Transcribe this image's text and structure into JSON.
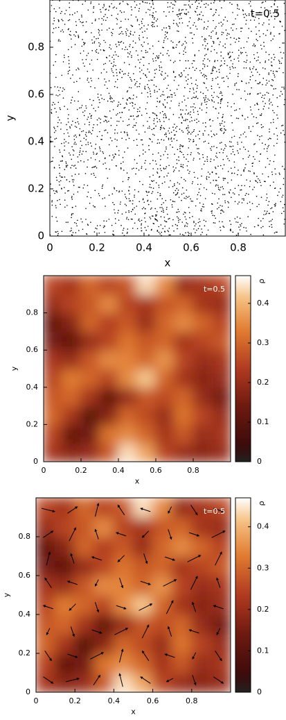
{
  "chart_data": [
    {
      "type": "scatter",
      "annotation": "t=0.5",
      "annotation_color": "#000000",
      "xlabel": "x",
      "ylabel": "y",
      "color": "#000000",
      "xlim": [
        0,
        1
      ],
      "ylim": [
        0,
        1
      ],
      "xticks": [
        0,
        0.2,
        0.4,
        0.6,
        0.8
      ],
      "yticks": [
        0,
        0.2,
        0.4,
        0.6,
        0.8
      ],
      "counts": [
        [
          22,
          18,
          20,
          28,
          44,
          38,
          25,
          20,
          18,
          20
        ],
        [
          25,
          12,
          15,
          32,
          35,
          30,
          22,
          28,
          20,
          22
        ],
        [
          30,
          22,
          10,
          18,
          30,
          26,
          20,
          32,
          25,
          20
        ],
        [
          28,
          30,
          22,
          12,
          20,
          28,
          26,
          30,
          20,
          15
        ],
        [
          25,
          33,
          30,
          25,
          35,
          42,
          30,
          22,
          18,
          20
        ],
        [
          22,
          20,
          28,
          35,
          34,
          30,
          36,
          25,
          20,
          22
        ],
        [
          15,
          12,
          20,
          25,
          32,
          28,
          30,
          22,
          25,
          28
        ],
        [
          12,
          18,
          30,
          24,
          28,
          20,
          30,
          35,
          30,
          25
        ],
        [
          20,
          25,
          28,
          35,
          25,
          22,
          28,
          30,
          22,
          20
        ],
        [
          25,
          22,
          30,
          25,
          28,
          44,
          35,
          20,
          22,
          25
        ]
      ]
    },
    {
      "type": "heatmap",
      "annotation": "t=0.5",
      "annotation_color": "#ffffff",
      "xlabel": "x",
      "ylabel": "y",
      "xlim": [
        0,
        1
      ],
      "ylim": [
        0,
        1
      ],
      "xticks": [
        0,
        0.2,
        0.4,
        0.6,
        0.8
      ],
      "yticks": [
        0,
        0.2,
        0.4,
        0.6,
        0.8
      ],
      "z": [
        [
          0.22,
          0.18,
          0.2,
          0.28,
          0.44,
          0.38,
          0.25,
          0.2,
          0.18,
          0.2
        ],
        [
          0.25,
          0.12,
          0.15,
          0.32,
          0.35,
          0.3,
          0.22,
          0.28,
          0.2,
          0.22
        ],
        [
          0.3,
          0.22,
          0.1,
          0.18,
          0.3,
          0.26,
          0.2,
          0.32,
          0.25,
          0.2
        ],
        [
          0.28,
          0.3,
          0.22,
          0.12,
          0.2,
          0.28,
          0.26,
          0.3,
          0.2,
          0.15
        ],
        [
          0.25,
          0.33,
          0.3,
          0.25,
          0.35,
          0.42,
          0.3,
          0.22,
          0.18,
          0.2
        ],
        [
          0.22,
          0.2,
          0.28,
          0.35,
          0.34,
          0.3,
          0.36,
          0.25,
          0.2,
          0.22
        ],
        [
          0.15,
          0.12,
          0.2,
          0.25,
          0.32,
          0.28,
          0.3,
          0.22,
          0.25,
          0.28
        ],
        [
          0.12,
          0.18,
          0.3,
          0.24,
          0.28,
          0.2,
          0.3,
          0.35,
          0.3,
          0.25
        ],
        [
          0.2,
          0.25,
          0.28,
          0.35,
          0.25,
          0.22,
          0.28,
          0.3,
          0.22,
          0.2
        ],
        [
          0.25,
          0.22,
          0.3,
          0.25,
          0.28,
          0.44,
          0.35,
          0.2,
          0.22,
          0.25
        ]
      ],
      "colorbar": {
        "label": "ρ",
        "lim": [
          0,
          0.47
        ],
        "ticks": [
          0,
          0.1,
          0.2,
          0.3,
          0.4
        ]
      }
    },
    {
      "type": "heatmap",
      "annotation": "t=0.5",
      "annotation_color": "#ffffff",
      "xlabel": "x",
      "ylabel": "y",
      "xlim": [
        0,
        1
      ],
      "ylim": [
        0,
        1
      ],
      "xticks": [
        0,
        0.2,
        0.4,
        0.6,
        0.8
      ],
      "yticks": [
        0,
        0.2,
        0.4,
        0.6,
        0.8
      ],
      "z": [
        [
          0.22,
          0.18,
          0.2,
          0.28,
          0.44,
          0.38,
          0.25,
          0.2,
          0.18,
          0.2
        ],
        [
          0.25,
          0.12,
          0.15,
          0.32,
          0.35,
          0.3,
          0.22,
          0.28,
          0.2,
          0.22
        ],
        [
          0.3,
          0.22,
          0.1,
          0.18,
          0.3,
          0.26,
          0.2,
          0.32,
          0.25,
          0.2
        ],
        [
          0.28,
          0.3,
          0.22,
          0.12,
          0.2,
          0.28,
          0.26,
          0.3,
          0.2,
          0.15
        ],
        [
          0.25,
          0.33,
          0.3,
          0.25,
          0.35,
          0.42,
          0.3,
          0.22,
          0.18,
          0.2
        ],
        [
          0.22,
          0.2,
          0.28,
          0.35,
          0.34,
          0.3,
          0.36,
          0.25,
          0.2,
          0.22
        ],
        [
          0.15,
          0.12,
          0.2,
          0.25,
          0.32,
          0.28,
          0.3,
          0.22,
          0.25,
          0.28
        ],
        [
          0.12,
          0.18,
          0.3,
          0.24,
          0.28,
          0.2,
          0.3,
          0.35,
          0.3,
          0.25
        ],
        [
          0.2,
          0.25,
          0.28,
          0.35,
          0.25,
          0.22,
          0.28,
          0.3,
          0.22,
          0.2
        ],
        [
          0.25,
          0.22,
          0.3,
          0.25,
          0.28,
          0.44,
          0.35,
          0.2,
          0.22,
          0.25
        ]
      ],
      "colorbar": {
        "label": "ρ",
        "lim": [
          0,
          0.47
        ],
        "ticks": [
          0,
          0.1,
          0.2,
          0.3,
          0.4
        ]
      },
      "vectors": {
        "color": "#000000",
        "u": [
          [
            0.6,
            0.8,
            0.4,
            -0.2,
            -0.6,
            -0.4,
            0.2,
            0.6
          ],
          [
            0.4,
            0.6,
            0.8,
            0.2,
            -0.4,
            -0.6,
            -0.2,
            0.4
          ],
          [
            -0.2,
            0.2,
            0.6,
            0.8,
            0.4,
            -0.2,
            -0.6,
            -0.2
          ],
          [
            -0.6,
            -0.4,
            0.2,
            0.6,
            0.8,
            0.4,
            -0.2,
            -0.6
          ],
          [
            -0.4,
            -0.6,
            -0.2,
            0.2,
            0.6,
            0.8,
            0.4,
            -0.2
          ],
          [
            0.2,
            -0.2,
            -0.6,
            -0.4,
            0.2,
            0.6,
            0.8,
            0.4
          ],
          [
            0.6,
            0.4,
            -0.2,
            -0.6,
            -0.4,
            0.2,
            0.6,
            0.8
          ],
          [
            0.8,
            0.6,
            0.2,
            -0.4,
            -0.6,
            -0.2,
            0.4,
            0.6
          ]
        ],
        "v": [
          [
            -0.4,
            0.2,
            0.6,
            0.8,
            0.4,
            -0.2,
            -0.6,
            -0.4
          ],
          [
            -0.6,
            -0.2,
            0.4,
            0.8,
            0.6,
            0.2,
            -0.4,
            -0.6
          ],
          [
            -0.4,
            -0.6,
            -0.2,
            0.4,
            0.8,
            0.6,
            0.2,
            -0.4
          ],
          [
            0.2,
            -0.4,
            -0.6,
            -0.2,
            0.4,
            0.8,
            0.6,
            0.2
          ],
          [
            0.6,
            0.2,
            -0.4,
            -0.6,
            -0.2,
            0.4,
            0.8,
            0.6
          ],
          [
            0.8,
            0.6,
            0.2,
            -0.4,
            -0.6,
            -0.2,
            0.4,
            0.8
          ],
          [
            0.4,
            0.8,
            0.6,
            0.2,
            -0.4,
            -0.6,
            -0.2,
            0.4
          ],
          [
            -0.2,
            0.4,
            0.8,
            0.6,
            0.2,
            -0.4,
            -0.6,
            -0.2
          ]
        ]
      }
    }
  ]
}
